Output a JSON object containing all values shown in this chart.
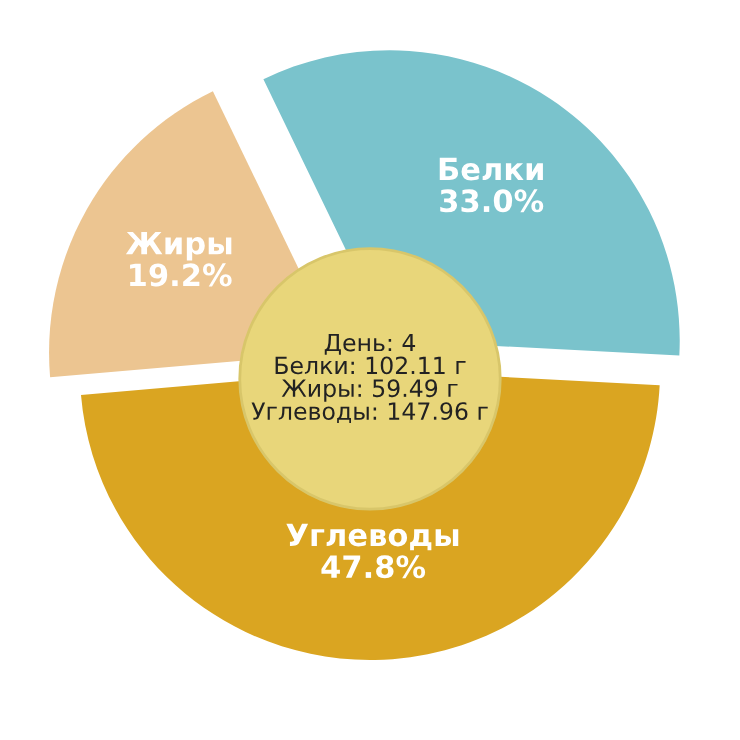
{
  "chart_data": {
    "type": "pie",
    "categories": [
      "Белки",
      "Жиры",
      "Углеводы"
    ],
    "values": [
      33.0,
      19.2,
      47.8
    ],
    "value_labels": [
      "33.0%",
      "19.2%",
      "47.8%"
    ],
    "colors": [
      "#7ac3cc",
      "#ecc591",
      "#daa521"
    ],
    "annotations": [
      "День: 4",
      "Белки: 102.11 г",
      "Жиры: 59.49 г",
      "Углеводы: 147.96 г"
    ],
    "legend": false
  }
}
